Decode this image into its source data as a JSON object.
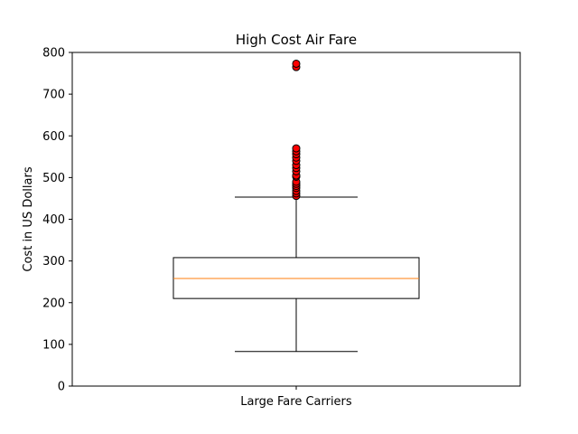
{
  "chart_data": {
    "type": "boxplot",
    "title": "High Cost Air Fare",
    "xlabel": "",
    "ylabel": "Cost in US Dollars",
    "ylim": [
      0,
      800
    ],
    "yticks": [
      0,
      100,
      200,
      300,
      400,
      500,
      600,
      700,
      800
    ],
    "categories": [
      "Large Fare Carriers"
    ],
    "box": {
      "whisker_low": 83,
      "q1": 210,
      "median": 258,
      "q3": 308,
      "whisker_high": 453
    },
    "outliers": [
      456,
      462,
      468,
      475,
      480,
      485,
      490,
      502,
      505,
      515,
      523,
      530,
      540,
      548,
      556,
      563,
      570,
      765,
      773
    ],
    "colors": {
      "box": "#000000",
      "median": "#ff7f0e",
      "outlier_fill": "#ff0000",
      "outlier_edge": "#000000"
    },
    "grid": false,
    "legend": false
  }
}
